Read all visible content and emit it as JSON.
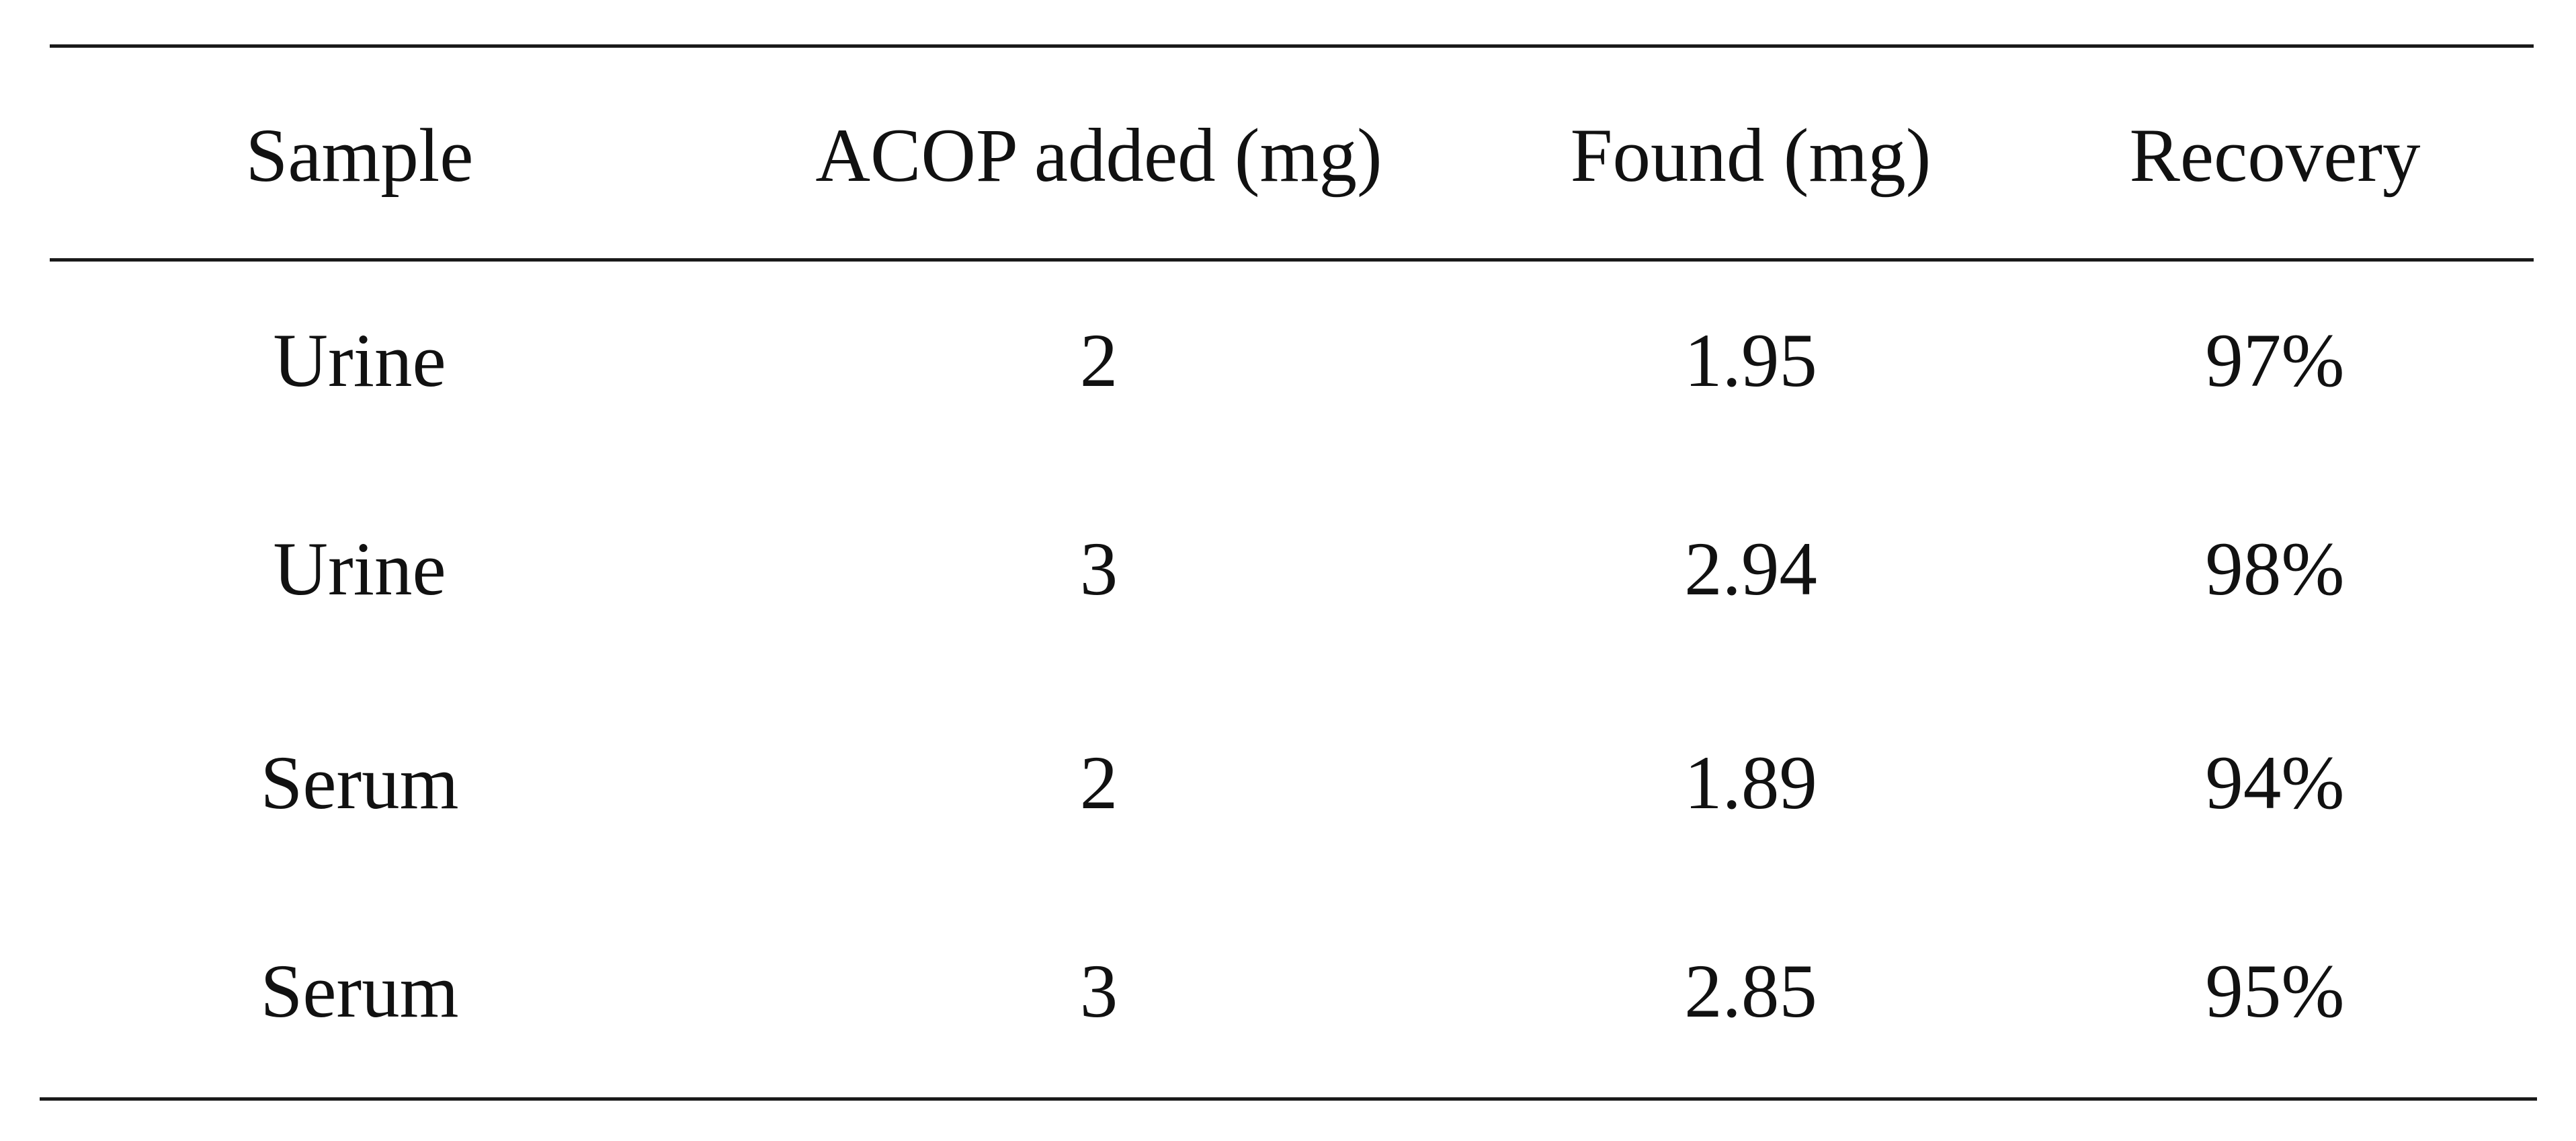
{
  "table": {
    "columns": [
      "Sample",
      "ACOP added (mg)",
      "Found (mg)",
      "Recovery"
    ],
    "rows": [
      [
        "Urine",
        "2",
        "1.95",
        "97%"
      ],
      [
        "Urine",
        "3",
        "2.94",
        "98%"
      ],
      [
        "Serum",
        "2",
        "1.89",
        "94%"
      ],
      [
        "Serum",
        "3",
        "2.85",
        "95%"
      ]
    ]
  }
}
